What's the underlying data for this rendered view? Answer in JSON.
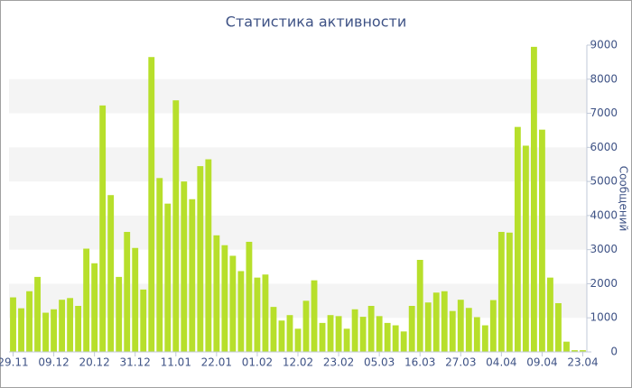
{
  "chart_data": {
    "type": "bar",
    "title": "Статистика активности",
    "y_label": "Сообщений",
    "categories": [
      "29.11",
      null,
      null,
      null,
      null,
      "09.12",
      null,
      null,
      null,
      null,
      "20.12",
      null,
      null,
      null,
      null,
      "31.12",
      null,
      null,
      null,
      null,
      "11.01",
      null,
      null,
      null,
      null,
      "22.01",
      null,
      null,
      null,
      null,
      "01.02",
      null,
      null,
      null,
      null,
      "12.02",
      null,
      null,
      null,
      null,
      "23.02",
      null,
      null,
      null,
      null,
      "05.03",
      null,
      null,
      null,
      null,
      "16.03",
      null,
      null,
      null,
      null,
      "27.03",
      null,
      null,
      null,
      null,
      "04.04",
      null,
      null,
      null,
      null,
      "09.04",
      null,
      null,
      null,
      null,
      "23.04"
    ],
    "values": [
      1600,
      1280,
      1780,
      2200,
      1150,
      1250,
      1530,
      1580,
      1350,
      3030,
      2600,
      7230,
      4600,
      2200,
      3520,
      3050,
      1830,
      8650,
      5100,
      4350,
      7380,
      5000,
      4480,
      5450,
      5650,
      3420,
      3130,
      2820,
      2370,
      3230,
      2180,
      2270,
      1320,
      920,
      1080,
      680,
      1500,
      2100,
      850,
      1080,
      1050,
      680,
      1250,
      1030,
      1350,
      1050,
      850,
      780,
      600,
      1350,
      2700,
      1450,
      1740,
      1780,
      1200,
      1530,
      1290,
      1020,
      780,
      1520,
      3520,
      3500,
      6600,
      6050,
      8950,
      6520,
      2180,
      1430,
      300,
      50,
      50
    ],
    "color": "#b7df2b",
    "ylim": [
      0,
      9000
    ],
    "yticks": [
      0,
      1000,
      2000,
      3000,
      4000,
      5000,
      6000,
      7000,
      8000,
      9000
    ],
    "grid": true
  }
}
